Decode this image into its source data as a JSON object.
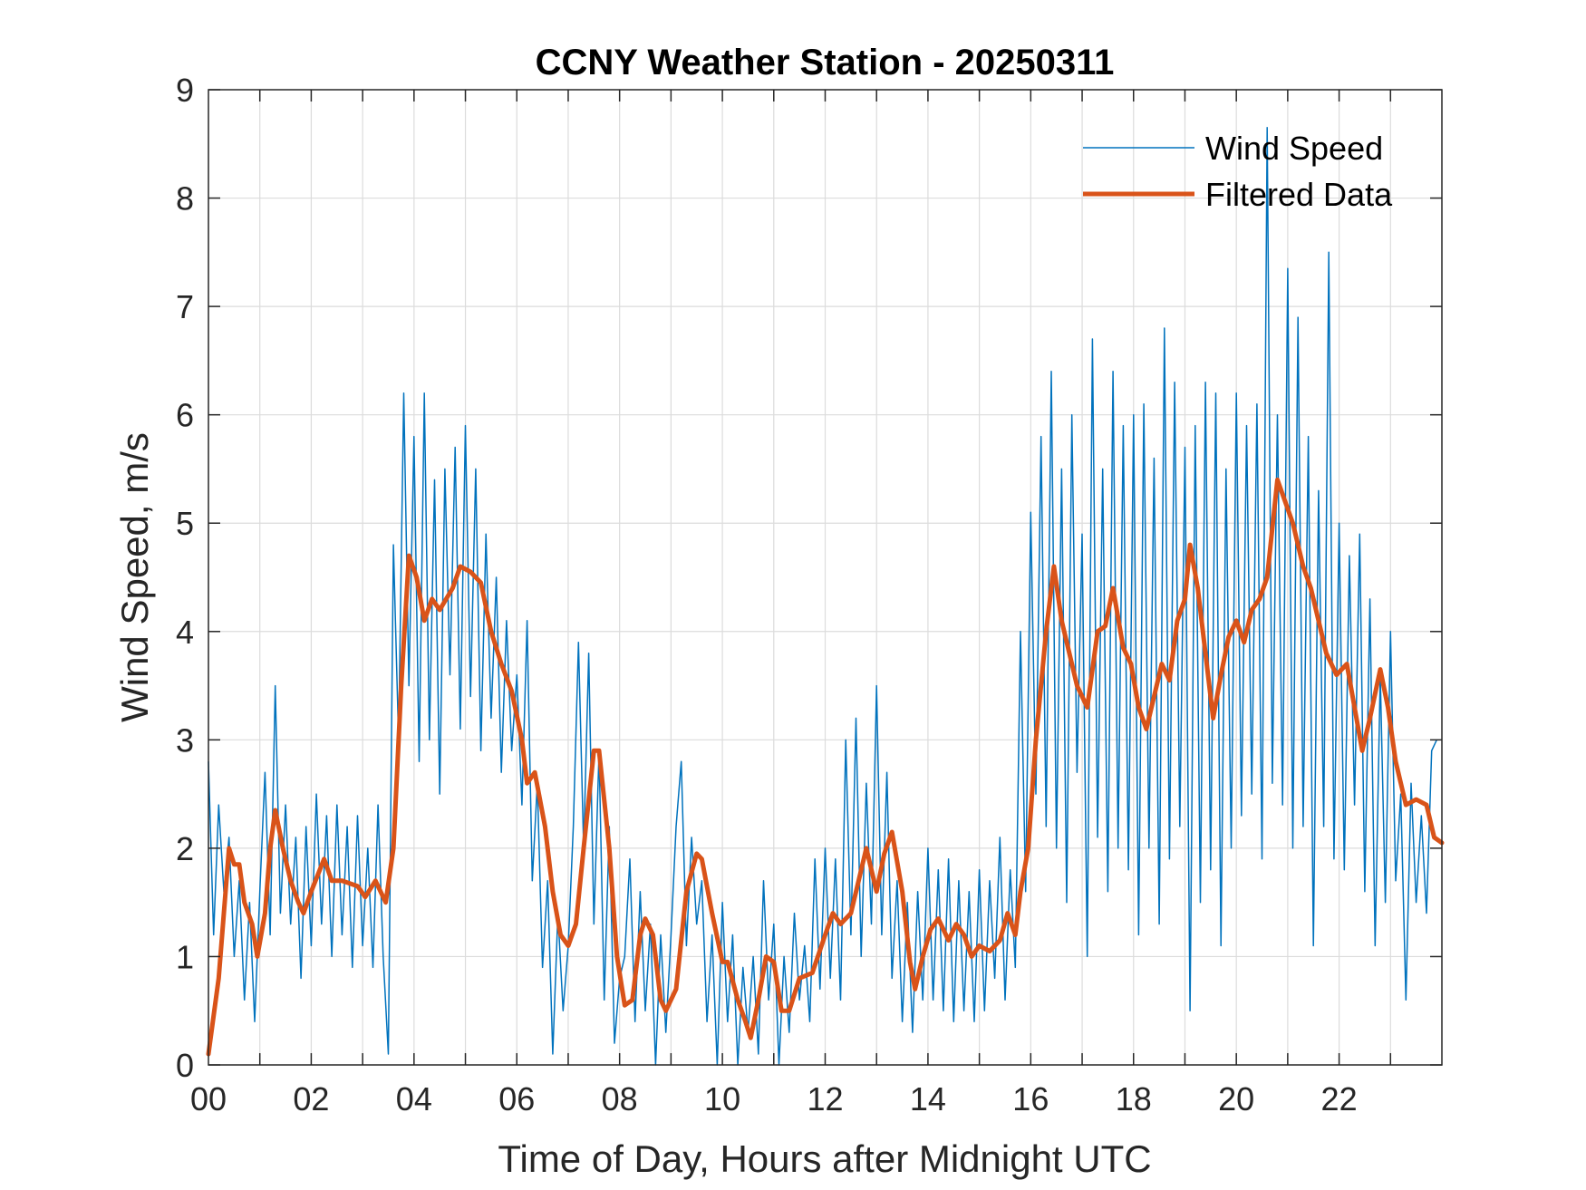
{
  "chart_data": {
    "type": "line",
    "title": "CCNY Weather Station - 20250311",
    "xlabel": "Time of Day, Hours after Midnight UTC",
    "ylabel": "Wind Speed, m/s",
    "xlim": [
      0,
      24
    ],
    "ylim": [
      0,
      9
    ],
    "xticks": [
      0,
      2,
      4,
      6,
      8,
      10,
      12,
      14,
      16,
      18,
      20,
      22
    ],
    "xtick_labels": [
      "00",
      "02",
      "04",
      "06",
      "08",
      "10",
      "12",
      "14",
      "16",
      "18",
      "20",
      "22"
    ],
    "yticks": [
      0,
      1,
      2,
      3,
      4,
      5,
      6,
      7,
      8,
      9
    ],
    "ytick_labels": [
      "0",
      "1",
      "2",
      "3",
      "4",
      "5",
      "6",
      "7",
      "8",
      "9"
    ],
    "grid": true,
    "legend_position": "top-right",
    "series": [
      {
        "name": "Wind Speed",
        "color": "#0072BD",
        "x_step_hours": 0.1,
        "values": [
          2.8,
          1.2,
          2.4,
          1.6,
          2.1,
          1.0,
          1.7,
          0.6,
          1.5,
          0.4,
          1.6,
          2.7,
          1.2,
          3.5,
          1.4,
          2.4,
          1.3,
          2.1,
          0.8,
          2.2,
          1.1,
          2.5,
          1.3,
          2.3,
          1.0,
          2.4,
          1.2,
          2.2,
          0.9,
          2.3,
          1.1,
          2.0,
          0.9,
          2.4,
          1.0,
          0.1,
          4.8,
          3.0,
          6.2,
          3.5,
          5.8,
          2.8,
          6.2,
          3.0,
          5.4,
          2.5,
          5.5,
          3.6,
          5.7,
          3.1,
          5.9,
          3.4,
          5.5,
          2.9,
          4.9,
          3.2,
          4.5,
          2.7,
          4.1,
          2.9,
          3.6,
          2.4,
          4.1,
          1.7,
          2.6,
          0.9,
          1.7,
          0.1,
          1.4,
          0.5,
          1.1,
          2.2,
          3.9,
          2.0,
          3.8,
          1.3,
          2.9,
          0.6,
          2.2,
          0.2,
          0.8,
          1.0,
          1.9,
          0.4,
          1.6,
          0.5,
          1.3,
          0.0,
          1.2,
          0.3,
          1.2,
          2.2,
          2.8,
          1.1,
          2.1,
          1.3,
          1.7,
          0.4,
          1.2,
          0.0,
          1.5,
          0.4,
          1.2,
          0.0,
          0.9,
          0.3,
          1.0,
          0.1,
          1.7,
          0.6,
          1.3,
          0.0,
          1.0,
          0.3,
          1.4,
          0.6,
          1.1,
          0.4,
          1.9,
          0.7,
          2.0,
          0.8,
          1.9,
          0.6,
          3.0,
          1.2,
          3.2,
          1.0,
          2.6,
          1.3,
          3.5,
          1.2,
          2.7,
          0.8,
          1.7,
          0.4,
          1.5,
          0.3,
          1.6,
          0.6,
          2.0,
          0.6,
          1.8,
          0.5,
          1.9,
          0.4,
          1.7,
          0.5,
          1.6,
          0.4,
          1.8,
          0.5,
          1.7,
          0.8,
          2.1,
          0.6,
          1.8,
          0.9,
          4.0,
          1.6,
          5.1,
          2.5,
          5.8,
          2.2,
          6.4,
          2.0,
          5.5,
          1.5,
          6.0,
          2.7,
          4.9,
          1.0,
          6.7,
          2.1,
          5.5,
          1.6,
          6.4,
          2.0,
          5.9,
          1.8,
          6.0,
          1.2,
          6.1,
          2.0,
          5.6,
          1.3,
          6.8,
          1.9,
          6.3,
          2.2,
          5.7,
          0.5,
          5.9,
          1.5,
          6.3,
          1.8,
          6.2,
          1.1,
          5.5,
          2.0,
          6.2,
          2.3,
          5.9,
          2.5,
          6.1,
          1.9,
          8.65,
          2.6,
          6.0,
          2.4,
          7.35,
          2.0,
          6.9,
          2.2,
          5.8,
          1.1,
          5.3,
          2.2,
          7.5,
          1.9,
          5.0,
          1.8,
          4.7,
          2.4,
          4.9,
          1.6,
          4.3,
          1.1,
          3.6,
          1.5,
          4.0,
          1.7,
          2.5,
          0.6,
          2.6,
          1.5,
          2.3,
          1.4,
          2.9,
          3.0
        ]
      },
      {
        "name": "Filtered Data",
        "color": "#D95319",
        "points": [
          [
            0.0,
            0.1
          ],
          [
            0.2,
            0.8
          ],
          [
            0.4,
            2.0
          ],
          [
            0.5,
            1.85
          ],
          [
            0.6,
            1.85
          ],
          [
            0.7,
            1.5
          ],
          [
            0.85,
            1.3
          ],
          [
            0.95,
            1.0
          ],
          [
            1.1,
            1.4
          ],
          [
            1.2,
            2.0
          ],
          [
            1.3,
            2.35
          ],
          [
            1.45,
            2.0
          ],
          [
            1.6,
            1.7
          ],
          [
            1.75,
            1.5
          ],
          [
            1.85,
            1.4
          ],
          [
            2.0,
            1.6
          ],
          [
            2.25,
            1.9
          ],
          [
            2.4,
            1.7
          ],
          [
            2.6,
            1.7
          ],
          [
            2.9,
            1.65
          ],
          [
            3.05,
            1.55
          ],
          [
            3.25,
            1.7
          ],
          [
            3.45,
            1.5
          ],
          [
            3.6,
            2.0
          ],
          [
            3.75,
            3.5
          ],
          [
            3.9,
            4.7
          ],
          [
            4.05,
            4.5
          ],
          [
            4.2,
            4.1
          ],
          [
            4.35,
            4.3
          ],
          [
            4.5,
            4.2
          ],
          [
            4.75,
            4.4
          ],
          [
            4.9,
            4.6
          ],
          [
            5.1,
            4.55
          ],
          [
            5.3,
            4.45
          ],
          [
            5.5,
            4.0
          ],
          [
            5.7,
            3.7
          ],
          [
            5.9,
            3.45
          ],
          [
            6.1,
            3.0
          ],
          [
            6.2,
            2.6
          ],
          [
            6.35,
            2.7
          ],
          [
            6.55,
            2.2
          ],
          [
            6.7,
            1.6
          ],
          [
            6.85,
            1.2
          ],
          [
            7.0,
            1.1
          ],
          [
            7.15,
            1.3
          ],
          [
            7.3,
            2.0
          ],
          [
            7.5,
            2.9
          ],
          [
            7.6,
            2.9
          ],
          [
            7.8,
            2.0
          ],
          [
            7.95,
            1.0
          ],
          [
            8.1,
            0.55
          ],
          [
            8.25,
            0.6
          ],
          [
            8.4,
            1.2
          ],
          [
            8.5,
            1.35
          ],
          [
            8.65,
            1.2
          ],
          [
            8.8,
            0.6
          ],
          [
            8.9,
            0.5
          ],
          [
            9.1,
            0.7
          ],
          [
            9.3,
            1.6
          ],
          [
            9.5,
            1.95
          ],
          [
            9.6,
            1.9
          ],
          [
            9.8,
            1.4
          ],
          [
            10.0,
            0.95
          ],
          [
            10.1,
            0.95
          ],
          [
            10.3,
            0.6
          ],
          [
            10.45,
            0.4
          ],
          [
            10.55,
            0.25
          ],
          [
            10.7,
            0.6
          ],
          [
            10.85,
            1.0
          ],
          [
            11.0,
            0.95
          ],
          [
            11.15,
            0.5
          ],
          [
            11.3,
            0.5
          ],
          [
            11.5,
            0.8
          ],
          [
            11.75,
            0.85
          ],
          [
            12.0,
            1.2
          ],
          [
            12.15,
            1.4
          ],
          [
            12.3,
            1.3
          ],
          [
            12.5,
            1.4
          ],
          [
            12.65,
            1.7
          ],
          [
            12.8,
            2.0
          ],
          [
            13.0,
            1.6
          ],
          [
            13.15,
            1.95
          ],
          [
            13.3,
            2.15
          ],
          [
            13.5,
            1.6
          ],
          [
            13.65,
            0.95
          ],
          [
            13.75,
            0.7
          ],
          [
            13.9,
            1.0
          ],
          [
            14.05,
            1.25
          ],
          [
            14.2,
            1.35
          ],
          [
            14.4,
            1.15
          ],
          [
            14.55,
            1.3
          ],
          [
            14.7,
            1.2
          ],
          [
            14.85,
            1.0
          ],
          [
            15.0,
            1.1
          ],
          [
            15.2,
            1.05
          ],
          [
            15.4,
            1.15
          ],
          [
            15.55,
            1.4
          ],
          [
            15.7,
            1.2
          ],
          [
            15.8,
            1.6
          ],
          [
            15.95,
            2.0
          ],
          [
            16.1,
            3.0
          ],
          [
            16.3,
            4.0
          ],
          [
            16.45,
            4.6
          ],
          [
            16.6,
            4.1
          ],
          [
            16.75,
            3.8
          ],
          [
            16.9,
            3.5
          ],
          [
            17.1,
            3.3
          ],
          [
            17.3,
            4.0
          ],
          [
            17.45,
            4.05
          ],
          [
            17.6,
            4.4
          ],
          [
            17.8,
            3.85
          ],
          [
            17.95,
            3.7
          ],
          [
            18.1,
            3.3
          ],
          [
            18.25,
            3.1
          ],
          [
            18.4,
            3.4
          ],
          [
            18.55,
            3.7
          ],
          [
            18.7,
            3.55
          ],
          [
            18.85,
            4.1
          ],
          [
            19.0,
            4.3
          ],
          [
            19.1,
            4.8
          ],
          [
            19.25,
            4.4
          ],
          [
            19.4,
            3.8
          ],
          [
            19.55,
            3.2
          ],
          [
            19.7,
            3.6
          ],
          [
            19.85,
            3.95
          ],
          [
            20.0,
            4.1
          ],
          [
            20.15,
            3.9
          ],
          [
            20.3,
            4.2
          ],
          [
            20.45,
            4.3
          ],
          [
            20.6,
            4.5
          ],
          [
            20.8,
            5.4
          ],
          [
            20.95,
            5.2
          ],
          [
            21.1,
            5.0
          ],
          [
            21.3,
            4.6
          ],
          [
            21.45,
            4.4
          ],
          [
            21.6,
            4.1
          ],
          [
            21.75,
            3.8
          ],
          [
            21.95,
            3.6
          ],
          [
            22.15,
            3.7
          ],
          [
            22.3,
            3.3
          ],
          [
            22.45,
            2.9
          ],
          [
            22.6,
            3.2
          ],
          [
            22.8,
            3.65
          ],
          [
            22.95,
            3.3
          ],
          [
            23.1,
            2.8
          ],
          [
            23.3,
            2.4
          ],
          [
            23.5,
            2.45
          ],
          [
            23.7,
            2.4
          ],
          [
            23.85,
            2.1
          ],
          [
            24.0,
            2.05
          ]
        ]
      }
    ]
  }
}
